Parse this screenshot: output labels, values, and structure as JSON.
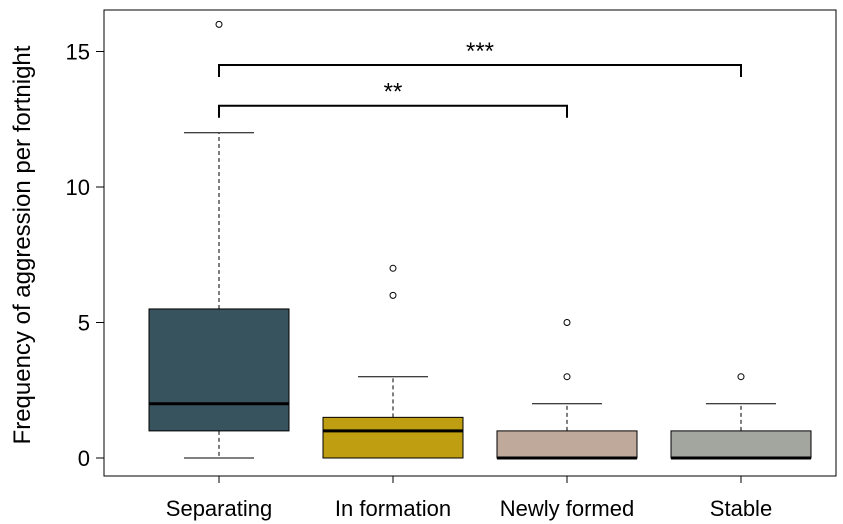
{
  "chart_data": {
    "type": "box",
    "ylabel": "Frequency of aggression per fortnight",
    "ylim": [
      -0.6,
      16.5
    ],
    "yticks": [
      0,
      5,
      10,
      15
    ],
    "grid": false,
    "categories": [
      "Separating",
      "In formation",
      "Newly formed",
      "Stable"
    ],
    "boxes": [
      {
        "category": "Separating",
        "q1": 1,
        "median": 2,
        "q3": 5.5,
        "whisker_low": 0,
        "whisker_high": 12,
        "outliers": [
          16
        ],
        "color": "#37535e"
      },
      {
        "category": "In formation",
        "q1": 0,
        "median": 1,
        "q3": 1.5,
        "whisker_low": 0,
        "whisker_high": 3,
        "outliers": [
          6,
          7
        ],
        "color": "#bf9e12"
      },
      {
        "category": "Newly formed",
        "q1": 0,
        "median": 0,
        "q3": 1,
        "whisker_low": 0,
        "whisker_high": 2,
        "outliers": [
          3,
          5
        ],
        "color": "#bfa99b"
      },
      {
        "category": "Stable",
        "q1": 0,
        "median": 0,
        "q3": 1,
        "whisker_low": 0,
        "whisker_high": 2,
        "outliers": [
          3
        ],
        "color": "#a3a69e"
      }
    ],
    "significance": [
      {
        "from": "Separating",
        "to": "Stable",
        "label": "***",
        "y": 14.5
      },
      {
        "from": "Separating",
        "to": "Newly formed",
        "label": "**",
        "y": 13.0
      }
    ]
  }
}
